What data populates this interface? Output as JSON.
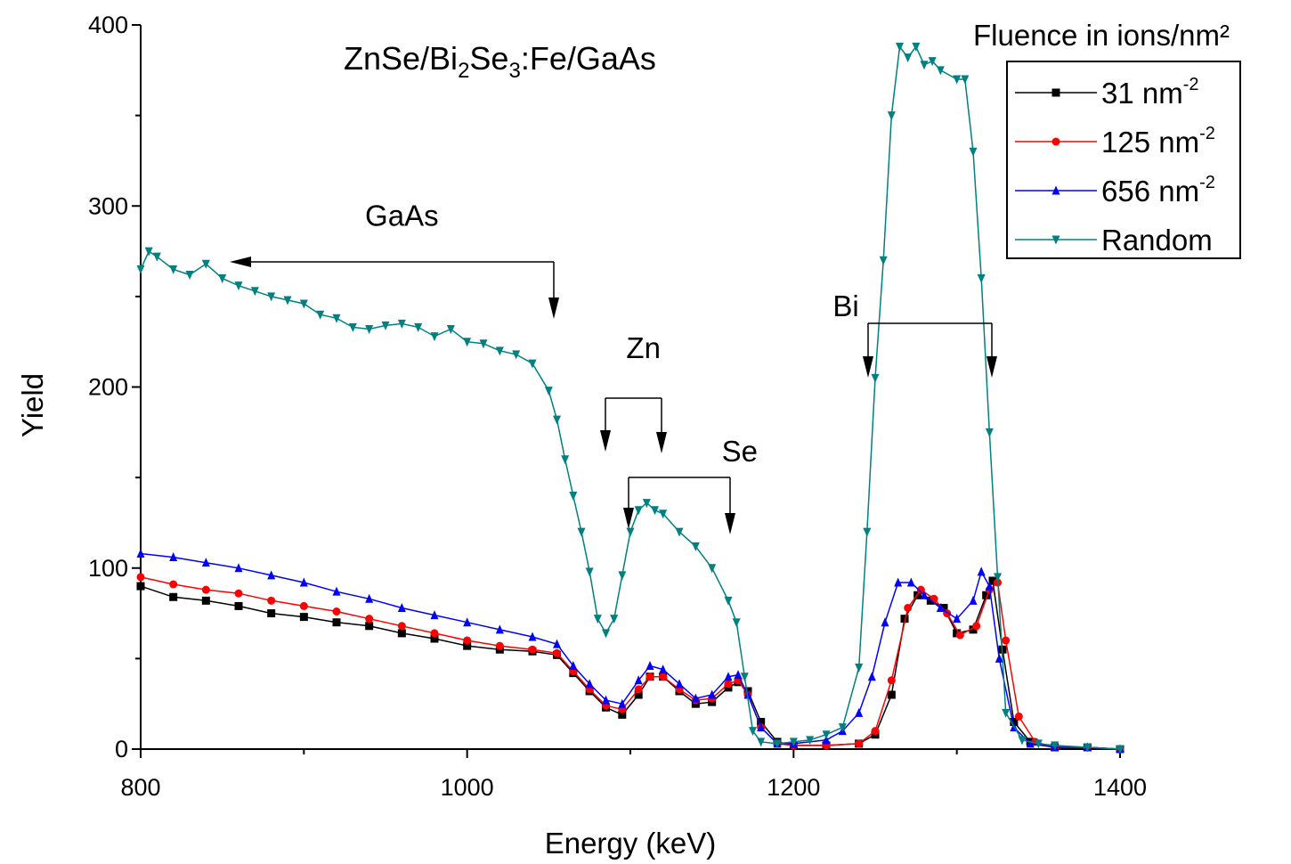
{
  "chart_data": {
    "type": "line",
    "title_parts": [
      "ZnSe/Bi",
      "2",
      "Se",
      "3",
      ":Fe/GaAs"
    ],
    "xlabel": "Energy (keV)",
    "ylabel": "Yield",
    "xlim": [
      800,
      1400
    ],
    "ylim": [
      0,
      400
    ],
    "x_ticks": [
      800,
      1000,
      1200,
      1400
    ],
    "y_ticks": [
      0,
      100,
      200,
      300,
      400
    ],
    "grid": false,
    "legend_title": "Fluence in ions/nm²",
    "legend_position": "top-right",
    "series": [
      {
        "name": "31 nm",
        "name_sup": "-2",
        "color": "#000000",
        "marker": "square",
        "x": [
          800,
          820,
          840,
          860,
          880,
          900,
          920,
          940,
          960,
          980,
          1000,
          1020,
          1040,
          1055,
          1065,
          1075,
          1085,
          1095,
          1105,
          1112,
          1120,
          1130,
          1140,
          1150,
          1160,
          1166,
          1172,
          1180,
          1190,
          1200,
          1220,
          1240,
          1250,
          1260,
          1268,
          1276,
          1284,
          1292,
          1300,
          1310,
          1318,
          1322,
          1328,
          1335,
          1345,
          1360,
          1380,
          1400
        ],
        "y": [
          90,
          84,
          82,
          79,
          75,
          73,
          70,
          68,
          64,
          61,
          57,
          55,
          54,
          52,
          42,
          32,
          23,
          19,
          30,
          40,
          40,
          32,
          25,
          26,
          34,
          37,
          32,
          15,
          4,
          2,
          2,
          3,
          8,
          30,
          72,
          85,
          82,
          78,
          64,
          66,
          85,
          93,
          55,
          15,
          4,
          1,
          1,
          0
        ]
      },
      {
        "name": "125 nm",
        "name_sup": "-2",
        "color": "#ff0000",
        "marker": "circle",
        "x": [
          800,
          820,
          840,
          860,
          880,
          900,
          920,
          940,
          960,
          980,
          1000,
          1020,
          1040,
          1055,
          1065,
          1075,
          1085,
          1095,
          1105,
          1112,
          1120,
          1130,
          1140,
          1150,
          1160,
          1166,
          1172,
          1180,
          1190,
          1200,
          1220,
          1240,
          1250,
          1260,
          1270,
          1278,
          1286,
          1294,
          1302,
          1312,
          1320,
          1325,
          1330,
          1338,
          1348,
          1360,
          1380,
          1400
        ],
        "y": [
          95,
          91,
          88,
          86,
          82,
          79,
          76,
          72,
          68,
          64,
          60,
          57,
          55,
          53,
          43,
          33,
          24,
          22,
          33,
          40,
          40,
          33,
          27,
          28,
          36,
          38,
          30,
          12,
          3,
          2,
          2,
          3,
          10,
          38,
          78,
          88,
          83,
          75,
          63,
          68,
          88,
          92,
          60,
          18,
          4,
          1,
          1,
          0
        ]
      },
      {
        "name": "656 nm",
        "name_sup": "-2",
        "color": "#0000ff",
        "marker": "triangle-up",
        "x": [
          800,
          820,
          840,
          860,
          880,
          900,
          920,
          940,
          960,
          980,
          1000,
          1020,
          1040,
          1055,
          1065,
          1075,
          1085,
          1095,
          1105,
          1112,
          1120,
          1130,
          1140,
          1150,
          1160,
          1166,
          1172,
          1180,
          1190,
          1200,
          1220,
          1230,
          1240,
          1248,
          1256,
          1264,
          1272,
          1280,
          1290,
          1300,
          1310,
          1315,
          1320,
          1326,
          1335,
          1345,
          1360,
          1380,
          1400
        ],
        "y": [
          108,
          106,
          103,
          100,
          96,
          92,
          87,
          83,
          78,
          74,
          70,
          66,
          62,
          58,
          46,
          36,
          27,
          25,
          38,
          46,
          44,
          36,
          28,
          30,
          40,
          41,
          30,
          12,
          3,
          3,
          5,
          10,
          20,
          40,
          70,
          92,
          92,
          85,
          78,
          72,
          82,
          98,
          90,
          50,
          12,
          3,
          1,
          1,
          0
        ]
      },
      {
        "name": "Random",
        "name_sup": "",
        "color": "#008080",
        "marker": "triangle-down",
        "x": [
          800,
          805,
          810,
          820,
          830,
          840,
          850,
          860,
          870,
          880,
          890,
          900,
          910,
          920,
          930,
          940,
          950,
          960,
          970,
          980,
          990,
          1000,
          1010,
          1020,
          1030,
          1040,
          1050,
          1055,
          1060,
          1065,
          1070,
          1075,
          1080,
          1085,
          1090,
          1095,
          1100,
          1105,
          1110,
          1115,
          1120,
          1130,
          1140,
          1150,
          1160,
          1165,
          1170,
          1175,
          1180,
          1190,
          1200,
          1210,
          1220,
          1230,
          1240,
          1245,
          1250,
          1255,
          1260,
          1265,
          1270,
          1275,
          1280,
          1285,
          1290,
          1300,
          1305,
          1310,
          1315,
          1320,
          1325,
          1330,
          1340,
          1350,
          1360,
          1380,
          1400
        ],
        "y": [
          265,
          275,
          272,
          265,
          262,
          268,
          260,
          256,
          253,
          250,
          248,
          246,
          240,
          238,
          233,
          232,
          234,
          235,
          233,
          228,
          232,
          225,
          224,
          220,
          218,
          213,
          198,
          182,
          160,
          140,
          120,
          98,
          72,
          64,
          72,
          96,
          120,
          132,
          136,
          132,
          130,
          120,
          112,
          100,
          82,
          70,
          40,
          10,
          4,
          3,
          4,
          5,
          8,
          12,
          45,
          120,
          205,
          270,
          350,
          388,
          382,
          388,
          378,
          380,
          375,
          370,
          370,
          330,
          260,
          175,
          95,
          20,
          5,
          3,
          2,
          1,
          0
        ]
      }
    ],
    "annotations": [
      {
        "label": "GaAs",
        "text_x": 960,
        "text_y": 289
      },
      {
        "label": "Zn",
        "text_x": 1108,
        "text_y": 216
      },
      {
        "label": "Se",
        "text_x": 1167,
        "text_y": 159
      },
      {
        "label": "Bi",
        "text_x": 1232,
        "text_y": 239
      }
    ]
  }
}
